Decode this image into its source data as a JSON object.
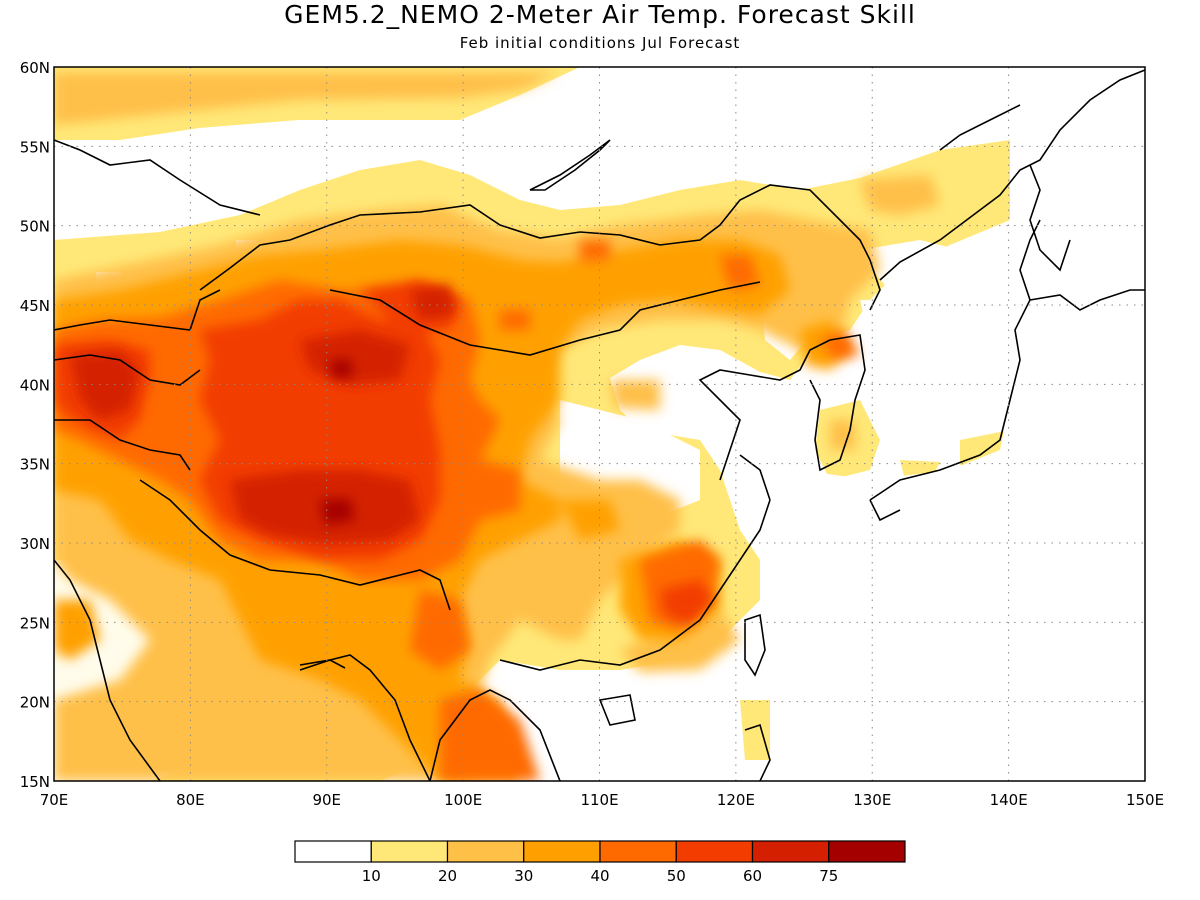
{
  "title": "GEM5.2_NEMO 2-Meter Air Temp. Forecast Skill",
  "subtitle": "Feb initial conditions  Jul Forecast",
  "map": {
    "lon_range": [
      70,
      150
    ],
    "lat_range": [
      15,
      60
    ],
    "lon_ticks": [
      70,
      80,
      90,
      100,
      110,
      120,
      130,
      140,
      150
    ],
    "lat_ticks": [
      15,
      20,
      25,
      30,
      35,
      40,
      45,
      50,
      55,
      60
    ],
    "lon_labels": [
      "70E",
      "80E",
      "90E",
      "100E",
      "110E",
      "120E",
      "130E",
      "140E",
      "150E"
    ],
    "lat_labels": [
      "15N",
      "20N",
      "25N",
      "30N",
      "35N",
      "40N",
      "45N",
      "50N",
      "55N",
      "60N"
    ],
    "gridlines": "dotted"
  },
  "colorbar": {
    "labels": [
      "10",
      "20",
      "30",
      "40",
      "50",
      "60",
      "75"
    ],
    "colors": [
      "#ffffff",
      "#ffe878",
      "#ffc048",
      "#ffa000",
      "#ff6a00",
      "#f23c00",
      "#d42000",
      "#a50000"
    ]
  }
}
